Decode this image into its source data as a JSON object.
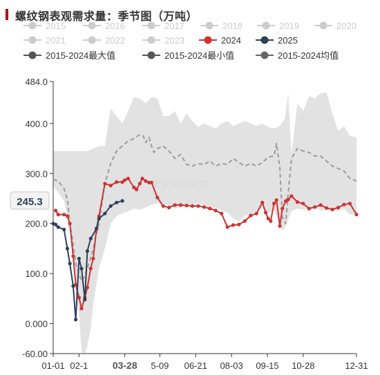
{
  "title": "螺纹钢表观需求量：季节图（万吨）",
  "watermark": "紫金天风期货",
  "cursor_label": "245.3",
  "colors": {
    "band": "#e2e2e2",
    "avg": "#9b9b9b",
    "y2024": "#cc3333",
    "y2025": "#2e4057",
    "inactive": "#cccccc",
    "axis": "#333333"
  },
  "legend": [
    {
      "label": "2015",
      "active": false,
      "color": "#cccccc"
    },
    {
      "label": "2016",
      "active": false,
      "color": "#cccccc"
    },
    {
      "label": "2017",
      "active": false,
      "color": "#cccccc"
    },
    {
      "label": "2018",
      "active": false,
      "color": "#cccccc"
    },
    {
      "label": "2019",
      "active": false,
      "color": "#cccccc"
    },
    {
      "label": "2020",
      "active": false,
      "color": "#cccccc"
    },
    {
      "label": "2021",
      "active": false,
      "color": "#cccccc"
    },
    {
      "label": "2022",
      "active": false,
      "color": "#cccccc"
    },
    {
      "label": "2023",
      "active": false,
      "color": "#cccccc"
    },
    {
      "label": "2024",
      "active": true,
      "color": "#cc3333"
    },
    {
      "label": "2025",
      "active": true,
      "color": "#2e4057"
    },
    {
      "label": "2015-2024最大值",
      "active": true,
      "color": "#555555"
    },
    {
      "label": "2015-2024最小值",
      "active": true,
      "color": "#555555"
    },
    {
      "label": "2015-2024均值",
      "active": true,
      "color": "#666666"
    }
  ],
  "chart_data": {
    "type": "line",
    "x_domain_days": [
      1,
      365
    ],
    "ylim": [
      -60,
      484
    ],
    "yticks": [
      {
        "value": 484,
        "label": "484.0"
      },
      {
        "value": 400,
        "label": "400.0"
      },
      {
        "value": 300,
        "label": "300.0"
      },
      {
        "value": 200,
        "label": "200.0"
      },
      {
        "value": 100,
        "label": "100.0"
      },
      {
        "value": 0,
        "label": "0.000"
      },
      {
        "value": -60,
        "label": "-60.00"
      }
    ],
    "xticks": [
      {
        "day": 1,
        "label": "01-01",
        "bold": false
      },
      {
        "day": 32,
        "label": "02-1",
        "bold": false
      },
      {
        "day": 87,
        "label": "03-28",
        "bold": true
      },
      {
        "day": 129,
        "label": "5-09",
        "bold": false
      },
      {
        "day": 172,
        "label": "06-21",
        "bold": false
      },
      {
        "day": 215,
        "label": "08-03",
        "bold": false
      },
      {
        "day": 258,
        "label": "09-15",
        "bold": false
      },
      {
        "day": 301,
        "label": "10-28",
        "bold": false
      },
      {
        "day": 365,
        "label": "12-31",
        "bold": false
      }
    ],
    "band_max": [
      [
        1,
        345
      ],
      [
        14,
        345
      ],
      [
        28,
        345
      ],
      [
        42,
        345
      ],
      [
        56,
        355
      ],
      [
        63,
        355
      ],
      [
        70,
        430
      ],
      [
        77,
        415
      ],
      [
        84,
        400
      ],
      [
        91,
        425
      ],
      [
        98,
        453
      ],
      [
        105,
        450
      ],
      [
        112,
        440
      ],
      [
        119,
        453
      ],
      [
        126,
        450
      ],
      [
        133,
        415
      ],
      [
        140,
        415
      ],
      [
        147,
        425
      ],
      [
        154,
        400
      ],
      [
        161,
        420
      ],
      [
        168,
        405
      ],
      [
        175,
        393
      ],
      [
        182,
        400
      ],
      [
        189,
        395
      ],
      [
        196,
        390
      ],
      [
        203,
        400
      ],
      [
        210,
        405
      ],
      [
        217,
        395
      ],
      [
        224,
        400
      ],
      [
        231,
        405
      ],
      [
        238,
        400
      ],
      [
        245,
        395
      ],
      [
        252,
        400
      ],
      [
        259,
        393
      ],
      [
        266,
        390
      ],
      [
        273,
        395
      ],
      [
        279,
        410
      ],
      [
        283,
        460
      ],
      [
        287,
        340
      ],
      [
        294,
        440
      ],
      [
        301,
        425
      ],
      [
        308,
        455
      ],
      [
        315,
        450
      ],
      [
        322,
        460
      ],
      [
        329,
        462
      ],
      [
        336,
        420
      ],
      [
        343,
        385
      ],
      [
        350,
        395
      ],
      [
        357,
        375
      ],
      [
        365,
        372
      ]
    ],
    "band_min": [
      [
        1,
        275
      ],
      [
        7,
        262
      ],
      [
        14,
        245
      ],
      [
        21,
        190
      ],
      [
        25,
        120
      ],
      [
        28,
        60
      ],
      [
        32,
        20
      ],
      [
        35,
        -55
      ],
      [
        39,
        -60
      ],
      [
        42,
        -45
      ],
      [
        46,
        -10
      ],
      [
        49,
        40
      ],
      [
        53,
        80
      ],
      [
        56,
        110
      ],
      [
        63,
        150
      ],
      [
        70,
        200
      ],
      [
        77,
        215
      ],
      [
        84,
        220
      ],
      [
        91,
        225
      ],
      [
        98,
        230
      ],
      [
        105,
        228
      ],
      [
        112,
        232
      ],
      [
        119,
        238
      ],
      [
        126,
        240
      ],
      [
        133,
        240
      ],
      [
        140,
        235
      ],
      [
        147,
        230
      ],
      [
        154,
        232
      ],
      [
        161,
        238
      ],
      [
        168,
        238
      ],
      [
        175,
        240
      ],
      [
        182,
        236
      ],
      [
        189,
        230
      ],
      [
        196,
        232
      ],
      [
        203,
        225
      ],
      [
        210,
        222
      ],
      [
        217,
        210
      ],
      [
        224,
        205
      ],
      [
        231,
        215
      ],
      [
        238,
        218
      ],
      [
        245,
        225
      ],
      [
        252,
        230
      ],
      [
        259,
        222
      ],
      [
        266,
        225
      ],
      [
        273,
        200
      ],
      [
        276,
        185
      ],
      [
        280,
        195
      ],
      [
        287,
        225
      ],
      [
        294,
        230
      ],
      [
        301,
        228
      ],
      [
        308,
        230
      ],
      [
        315,
        233
      ],
      [
        322,
        225
      ],
      [
        329,
        228
      ],
      [
        336,
        228
      ],
      [
        343,
        225
      ],
      [
        350,
        230
      ],
      [
        357,
        218
      ],
      [
        365,
        220
      ]
    ],
    "series": [
      {
        "name": "2015-2024均值",
        "style": "dashed",
        "points": [
          [
            1,
            288
          ],
          [
            7,
            285
          ],
          [
            14,
            270
          ],
          [
            18,
            248
          ],
          [
            21,
            200
          ],
          [
            25,
            160
          ],
          [
            28,
            120
          ],
          [
            32,
            100
          ],
          [
            35,
            85
          ],
          [
            39,
            95
          ],
          [
            42,
            110
          ],
          [
            49,
            150
          ],
          [
            53,
            180
          ],
          [
            56,
            200
          ],
          [
            63,
            280
          ],
          [
            70,
            320
          ],
          [
            77,
            345
          ],
          [
            84,
            355
          ],
          [
            91,
            365
          ],
          [
            98,
            370
          ],
          [
            105,
            378
          ],
          [
            109,
            375
          ],
          [
            112,
            362
          ],
          [
            116,
            372
          ],
          [
            119,
            355
          ],
          [
            122,
            342
          ],
          [
            126,
            350
          ],
          [
            133,
            355
          ],
          [
            140,
            345
          ],
          [
            147,
            330
          ],
          [
            154,
            338
          ],
          [
            161,
            318
          ],
          [
            168,
            315
          ],
          [
            175,
            320
          ],
          [
            182,
            318
          ],
          [
            189,
            325
          ],
          [
            196,
            315
          ],
          [
            203,
            320
          ],
          [
            210,
            318
          ],
          [
            217,
            330
          ],
          [
            224,
            322
          ],
          [
            231,
            315
          ],
          [
            238,
            320
          ],
          [
            245,
            315
          ],
          [
            252,
            322
          ],
          [
            259,
            333
          ],
          [
            266,
            335
          ],
          [
            269,
            360
          ],
          [
            273,
            312
          ],
          [
            276,
            212
          ],
          [
            280,
            200
          ],
          [
            283,
            260
          ],
          [
            287,
            330
          ],
          [
            294,
            350
          ],
          [
            301,
            345
          ],
          [
            308,
            342
          ],
          [
            315,
            335
          ],
          [
            322,
            335
          ],
          [
            329,
            325
          ],
          [
            336,
            315
          ],
          [
            343,
            310
          ],
          [
            350,
            305
          ],
          [
            357,
            290
          ],
          [
            365,
            285
          ]
        ]
      },
      {
        "name": "2024",
        "style": "markers",
        "points": [
          [
            4,
            226
          ],
          [
            7,
            218
          ],
          [
            14,
            218
          ],
          [
            18,
            215
          ],
          [
            21,
            200
          ],
          [
            25,
            135
          ],
          [
            28,
            78
          ],
          [
            32,
            52
          ],
          [
            35,
            30
          ],
          [
            39,
            52
          ],
          [
            42,
            72
          ],
          [
            46,
            110
          ],
          [
            49,
            130
          ],
          [
            53,
            190
          ],
          [
            56,
            215
          ],
          [
            63,
            280
          ],
          [
            70,
            276
          ],
          [
            77,
            283
          ],
          [
            84,
            283
          ],
          [
            87,
            287
          ],
          [
            91,
            290
          ],
          [
            98,
            272
          ],
          [
            101,
            268
          ],
          [
            105,
            280
          ],
          [
            108,
            290
          ],
          [
            112,
            285
          ],
          [
            116,
            282
          ],
          [
            119,
            282
          ],
          [
            126,
            252
          ],
          [
            133,
            235
          ],
          [
            140,
            232
          ],
          [
            147,
            237
          ],
          [
            154,
            237
          ],
          [
            161,
            236
          ],
          [
            168,
            235
          ],
          [
            175,
            235
          ],
          [
            182,
            233
          ],
          [
            189,
            230
          ],
          [
            196,
            226
          ],
          [
            203,
            220
          ],
          [
            210,
            193
          ],
          [
            217,
            197
          ],
          [
            224,
            198
          ],
          [
            231,
            205
          ],
          [
            238,
            216
          ],
          [
            245,
            220
          ],
          [
            252,
            242
          ],
          [
            256,
            222
          ],
          [
            259,
            210
          ],
          [
            262,
            205
          ],
          [
            266,
            240
          ],
          [
            269,
            247
          ],
          [
            273,
            195
          ],
          [
            276,
            230
          ],
          [
            280,
            245
          ],
          [
            283,
            248
          ],
          [
            287,
            255
          ],
          [
            294,
            243
          ],
          [
            301,
            240
          ],
          [
            308,
            230
          ],
          [
            315,
            233
          ],
          [
            322,
            237
          ],
          [
            329,
            231
          ],
          [
            336,
            228
          ],
          [
            343,
            232
          ],
          [
            350,
            238
          ],
          [
            357,
            240
          ],
          [
            365,
            218
          ]
        ]
      },
      {
        "name": "2025",
        "style": "markers",
        "points": [
          [
            1,
            200
          ],
          [
            4,
            198
          ],
          [
            7,
            193
          ],
          [
            14,
            188
          ],
          [
            18,
            150
          ],
          [
            21,
            120
          ],
          [
            25,
            75
          ],
          [
            28,
            8
          ],
          [
            32,
            130
          ],
          [
            35,
            110
          ],
          [
            39,
            48
          ],
          [
            42,
            145
          ],
          [
            46,
            170
          ],
          [
            53,
            190
          ],
          [
            56,
            210
          ],
          [
            63,
            220
          ],
          [
            70,
            235
          ],
          [
            77,
            242
          ],
          [
            84,
            245.3
          ]
        ]
      }
    ]
  }
}
